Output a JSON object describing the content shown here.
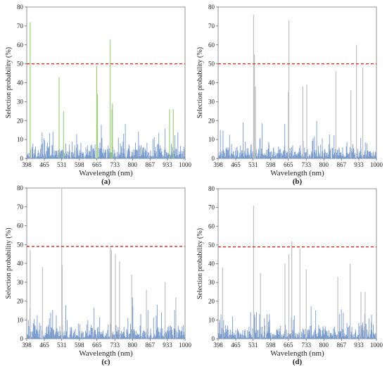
{
  "chart_data": [
    {
      "type": "bar",
      "panel_label": "(a)",
      "xlabel": "Wavelength (nm)",
      "ylabel": "Selection probability (%)",
      "xlim": [
        398,
        1000
      ],
      "ylim": [
        0,
        80
      ],
      "x_ticks": [
        "398",
        "465",
        "531",
        "598",
        "665",
        "733",
        "800",
        "867",
        "933",
        "1000"
      ],
      "y_ticks": [
        "0",
        "10",
        "20",
        "30",
        "40",
        "50",
        "60",
        "70",
        "80"
      ],
      "threshold": 50,
      "series": [
        {
          "name": "",
          "color": "#7799cc",
          "values": []
        },
        {
          "name": "",
          "color": "#9fcf7c",
          "peaks": [
            [
              411,
              72
            ],
            [
              521,
              43
            ],
            [
              538,
              25
            ],
            [
              664,
              49
            ],
            [
              667,
              34
            ],
            [
              715,
              63
            ],
            [
              722,
              26
            ],
            [
              724,
              29
            ],
            [
              941,
              26
            ],
            [
              955,
              26
            ]
          ]
        }
      ]
    },
    {
      "type": "bar",
      "panel_label": "(b)",
      "xlabel": "Wavelength (nm)",
      "ylabel": "Selection probability (%)",
      "xlim": [
        398,
        1000
      ],
      "ylim": [
        0,
        80
      ],
      "x_ticks": [
        "398",
        "465",
        "531",
        "598",
        "665",
        "733",
        "800",
        "867",
        "933",
        "1000"
      ],
      "y_ticks": [
        "0",
        "10",
        "20",
        "30",
        "40",
        "50",
        "60",
        "70",
        "80"
      ],
      "threshold": 50,
      "series": [
        {
          "name": "",
          "color": "#7799cc",
          "values": []
        },
        {
          "name": "",
          "color": "#bfbfbf",
          "peaks": [
            [
              533,
              76
            ],
            [
              536,
              55
            ],
            [
              540,
              38
            ],
            [
              667,
              73
            ],
            [
              665,
              35
            ],
            [
              720,
              38
            ],
            [
              735,
              39
            ],
            [
              846,
              46
            ],
            [
              924,
              60
            ],
            [
              948,
              48
            ],
            [
              903,
              36
            ]
          ]
        }
      ]
    },
    {
      "type": "bar",
      "panel_label": "(c)",
      "xlabel": "Wavelength (nm)",
      "ylabel": "Selection probability (%)",
      "xlim": [
        398,
        1000
      ],
      "ylim": [
        0,
        80
      ],
      "x_ticks": [
        "398",
        "465",
        "531",
        "598",
        "665",
        "733",
        "800",
        "867",
        "933",
        "1000"
      ],
      "y_ticks": [
        "0",
        "10",
        "20",
        "30",
        "40",
        "50",
        "60",
        "70",
        "80"
      ],
      "threshold": 49,
      "series": [
        {
          "name": "",
          "color": "#7799cc",
          "values": []
        },
        {
          "name": "",
          "color": "#bfbfbf",
          "peaks": [
            [
              531,
              80
            ],
            [
              533,
              39
            ],
            [
              411,
              47
            ],
            [
              458,
              38
            ],
            [
              716,
              49
            ],
            [
              720,
              47
            ],
            [
              735,
              45
            ],
            [
              751,
              41
            ],
            [
              797,
              34
            ],
            [
              853,
              26
            ],
            [
              924,
              30
            ],
            [
              965,
              22
            ]
          ]
        }
      ]
    },
    {
      "type": "bar",
      "panel_label": "(d)",
      "xlabel": "Wavelength (nm)",
      "ylabel": "Selection probability (%)",
      "xlim": [
        398,
        1000
      ],
      "ylim": [
        0,
        80
      ],
      "x_ticks": [
        "398",
        "465",
        "531",
        "598",
        "665",
        "733",
        "800",
        "867",
        "933",
        "1000"
      ],
      "y_ticks": [
        "0",
        "10",
        "20",
        "30",
        "40",
        "50",
        "60",
        "70",
        "80"
      ],
      "threshold": 49,
      "series": [
        {
          "name": "",
          "color": "#7799cc",
          "values": []
        },
        {
          "name": "",
          "color": "#bfbfbf",
          "peaks": [
            [
              533,
              71
            ],
            [
              559,
              35
            ],
            [
              652,
              40
            ],
            [
              667,
              45
            ],
            [
              678,
              52
            ],
            [
              709,
              48
            ],
            [
              733,
              37
            ],
            [
              853,
              33
            ],
            [
              900,
              40
            ],
            [
              941,
              25
            ],
            [
              957,
              25
            ],
            [
              415,
              38
            ]
          ]
        }
      ]
    }
  ]
}
